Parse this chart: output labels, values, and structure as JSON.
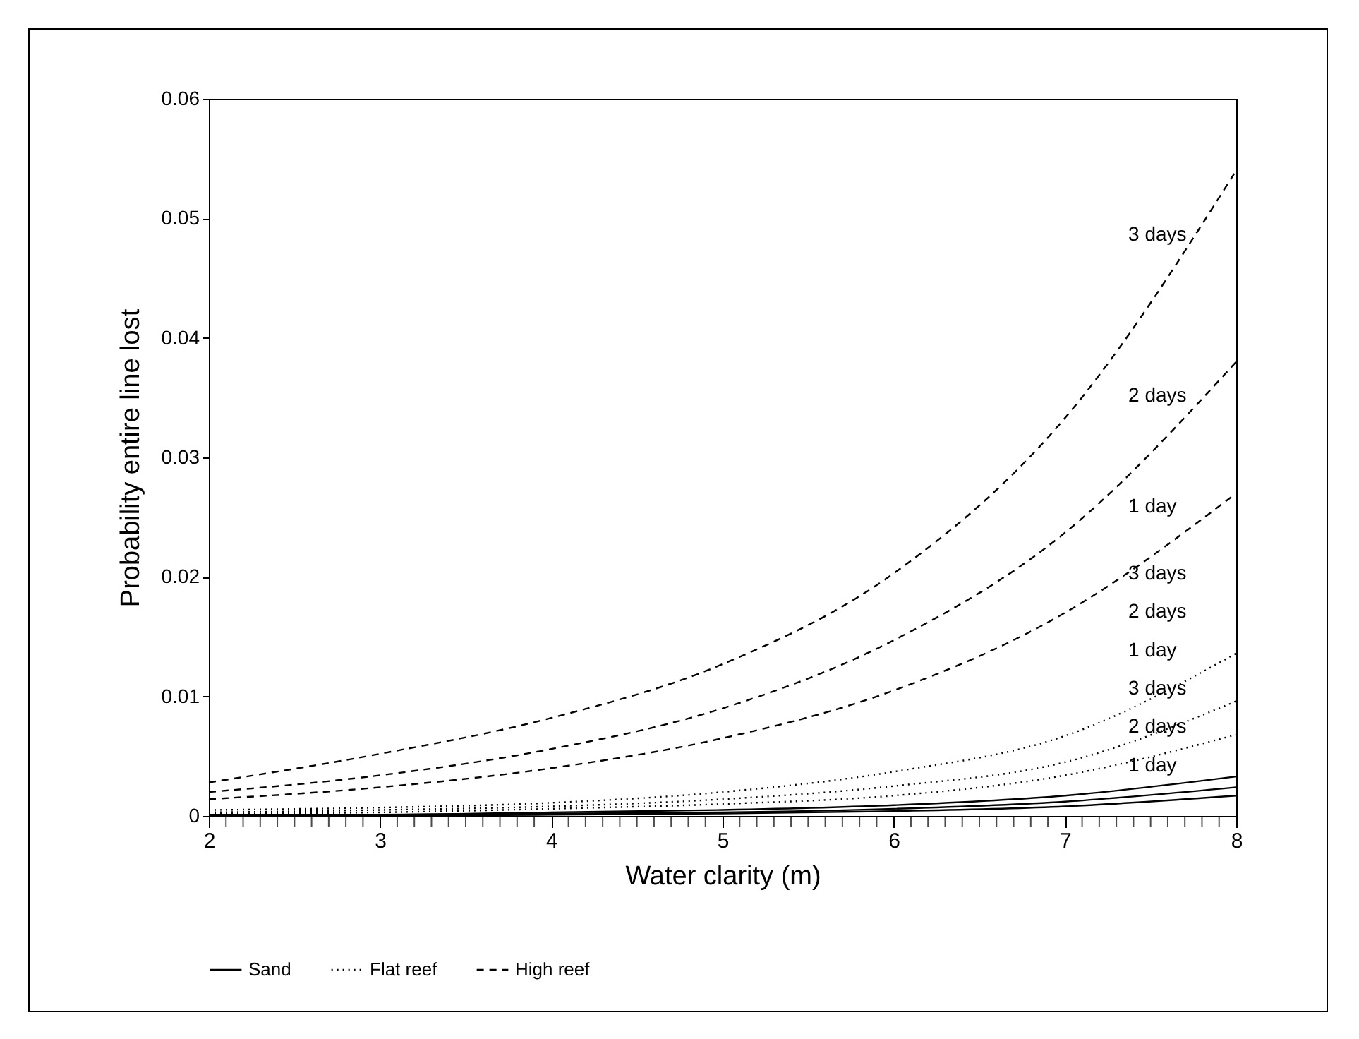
{
  "chart_data": {
    "type": "line",
    "xlabel": "Water clarity (m)",
    "ylabel": "Probability entire line lost",
    "x": [
      2,
      3,
      4,
      5,
      6,
      7,
      8
    ],
    "series": [
      {
        "name": "Sand",
        "color": "#000000",
        "line_style": "solid",
        "values": [
          0.0001,
          0.0001,
          0.0003,
          0.0005,
          0.0009,
          0.0017,
          0.0033
        ]
      },
      {
        "color": "#000000",
        "line_style": "solid",
        "values": [
          0.0,
          0.0001,
          0.0002,
          0.0003,
          0.0006,
          0.0012,
          0.0024
        ]
      },
      {
        "color": "#000000",
        "line_style": "solid",
        "values": [
          0.0,
          0.0,
          0.0001,
          0.0002,
          0.0004,
          0.0008,
          0.0017
        ]
      },
      {
        "name": "Flat reef",
        "color": "#000000",
        "line_style": "dotted",
        "values": [
          0.0005,
          0.0007,
          0.0011,
          0.002,
          0.0037,
          0.0067,
          0.0136
        ]
      },
      {
        "color": "#000000",
        "line_style": "dotted",
        "values": [
          0.0003,
          0.0005,
          0.0008,
          0.0014,
          0.0025,
          0.0045,
          0.0096
        ]
      },
      {
        "color": "#000000",
        "line_style": "dotted",
        "values": [
          0.0002,
          0.0003,
          0.0006,
          0.001,
          0.0017,
          0.0034,
          0.0068
        ]
      },
      {
        "name": "High reef",
        "color": "#000000",
        "line_style": "dashed",
        "values": [
          0.0028,
          0.0052,
          0.0082,
          0.0127,
          0.0203,
          0.0333,
          0.054
        ]
      },
      {
        "color": "#000000",
        "line_style": "dashed",
        "values": [
          0.002,
          0.0034,
          0.0056,
          0.009,
          0.0147,
          0.0237,
          0.038
        ]
      },
      {
        "color": "#000000",
        "line_style": "dashed",
        "values": [
          0.0014,
          0.0024,
          0.004,
          0.0065,
          0.0105,
          0.017,
          0.027
        ]
      }
    ],
    "annotations": [
      "3 days",
      "2 days",
      "1 day",
      "3 days",
      "2 days",
      "1 day",
      "3 days",
      "2 days",
      "1 day"
    ],
    "xlim": [
      2,
      8
    ],
    "xticks": [
      2,
      {
        "value": 2.1,
        "label": null
      },
      {
        "value": 2.2,
        "label": null
      },
      {
        "value": 2.3,
        "label": null
      },
      {
        "value": 2.4,
        "label": null
      },
      {
        "value": 2.5,
        "label": null
      },
      {
        "value": 2.6,
        "label": null
      },
      {
        "value": 2.7,
        "label": null
      },
      {
        "value": 2.8,
        "label": null
      },
      {
        "value": 2.9,
        "label": null
      },
      3,
      {
        "value": 3.1,
        "label": null
      },
      {
        "value": 3.2,
        "label": null
      },
      {
        "value": 3.3,
        "label": null
      },
      {
        "value": 3.4,
        "label": null
      },
      {
        "value": 3.5,
        "label": null
      },
      {
        "value": 3.6,
        "label": null
      },
      {
        "value": 3.7,
        "label": null
      },
      {
        "value": 3.8,
        "label": null
      },
      {
        "value": 3.9,
        "label": null
      },
      4,
      {
        "value": 4.1,
        "label": null
      },
      {
        "value": 4.2,
        "label": null
      },
      {
        "value": 4.3,
        "label": null
      },
      {
        "value": 4.4,
        "label": null
      },
      {
        "value": 4.5,
        "label": null
      },
      {
        "value": 4.6,
        "label": null
      },
      {
        "value": 4.7,
        "label": null
      },
      {
        "value": 4.8,
        "label": null
      },
      {
        "value": 4.9,
        "label": null
      },
      5,
      {
        "value": 5.1,
        "label": null
      },
      {
        "value": 5.2,
        "label": null
      },
      {
        "value": 5.3,
        "label": null
      },
      {
        "value": 5.4,
        "label": null
      },
      {
        "value": 5.5,
        "label": null
      },
      {
        "value": 5.6,
        "label": null
      },
      {
        "value": 5.7,
        "label": null
      },
      {
        "value": 5.8,
        "label": null
      },
      {
        "value": 5.9,
        "label": null
      },
      6,
      {
        "value": 6.1,
        "label": null
      },
      {
        "value": 6.2,
        "label": null
      },
      {
        "value": 6.3,
        "label": null
      },
      {
        "value": 6.4,
        "label": null
      },
      {
        "value": 6.5,
        "label": null
      },
      {
        "value": 6.6,
        "label": null
      },
      {
        "value": 6.7,
        "label": null
      },
      {
        "value": 6.8,
        "label": null
      },
      {
        "value": 6.9,
        "label": null
      },
      7,
      {
        "value": 7.1,
        "label": null
      },
      {
        "value": 7.2,
        "label": null
      },
      {
        "value": 7.3,
        "label": null
      },
      {
        "value": 7.4,
        "label": null
      },
      {
        "value": 7.5,
        "label": null
      },
      {
        "value": 7.6,
        "label": null
      },
      {
        "value": 7.7,
        "label": null
      },
      {
        "value": 7.8,
        "label": null
      },
      {
        "value": 7.9,
        "label": null
      },
      8
    ],
    "ylim": [
      0,
      0.06
    ],
    "yticks": [
      0,
      0.01,
      0.02,
      0.03,
      0.04,
      0.05,
      0.06
    ],
    "grid": false,
    "legend": "bottom"
  }
}
